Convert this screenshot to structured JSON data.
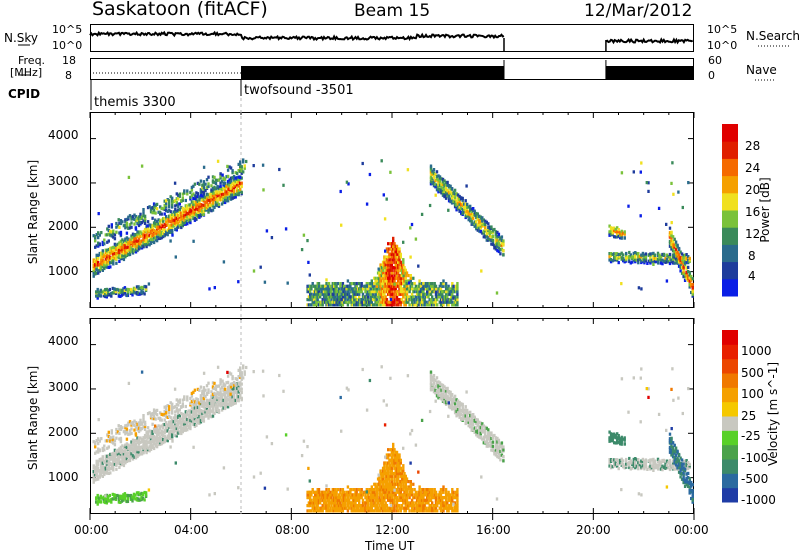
{
  "header": {
    "station": "Saskatoon (fitACF)",
    "beam": "Beam 15",
    "date": "12/Mar/2012"
  },
  "sky_panel": {
    "left_label": "N.Sky",
    "left_ticks": [
      "10^5",
      "10^0"
    ],
    "right_ticks": [
      "10^5",
      "10^0"
    ],
    "right_label": "N.Search"
  },
  "freq_panel": {
    "left_label_1": "Freq.",
    "left_label_2": "[MHz]",
    "left_ticks": [
      "18",
      "8"
    ],
    "right_ticks": [
      "60",
      "0"
    ],
    "right_label": "Nave"
  },
  "cpid": {
    "label": "CPID",
    "segments": [
      {
        "name": "themis 3300",
        "start_hour": 0,
        "end_hour": 6
      },
      {
        "name": "twofsound -3501",
        "start_hour": 6,
        "end_hour": 24
      }
    ]
  },
  "chart_data": [
    {
      "type": "heatmap",
      "name": "Power",
      "ylabel": "Slant Range [km]",
      "yticks": [
        "4000",
        "3000",
        "2000",
        "1000"
      ],
      "ylim": [
        180,
        4600
      ],
      "colorbar": {
        "label": "Power [dB]",
        "ticks": [
          "28",
          "24",
          "20",
          "16",
          "12",
          "8",
          "4"
        ],
        "colors": [
          "#0a1ee6",
          "#1e3c9c",
          "#2a6b8c",
          "#3a8a5a",
          "#7ac23a",
          "#f0e020",
          "#f5a000",
          "#f56a00",
          "#e02000",
          "#e00000"
        ]
      }
    },
    {
      "type": "heatmap",
      "name": "Velocity",
      "ylabel": "Slant Range [km]",
      "yticks": [
        "4000",
        "3000",
        "2000",
        "1000"
      ],
      "ylim": [
        180,
        4600
      ],
      "colorbar": {
        "label": "Velocity [m s^-1]",
        "ticks": [
          "1000",
          "500",
          "100",
          "25",
          "-25",
          "-100",
          "-500",
          "-1000"
        ],
        "colors": [
          "#1f3ca6",
          "#2b6aa0",
          "#3c8a6a",
          "#4aa24a",
          "#58d028",
          "#c8c8c0",
          "#f5c800",
          "#f5a000",
          "#f07800",
          "#ec4600",
          "#e82000",
          "#e00000"
        ]
      }
    }
  ],
  "xaxis": {
    "ticks": [
      "00:00",
      "04:00",
      "08:00",
      "12:00",
      "16:00",
      "20:00",
      "00:00"
    ],
    "label": "Time UT"
  }
}
